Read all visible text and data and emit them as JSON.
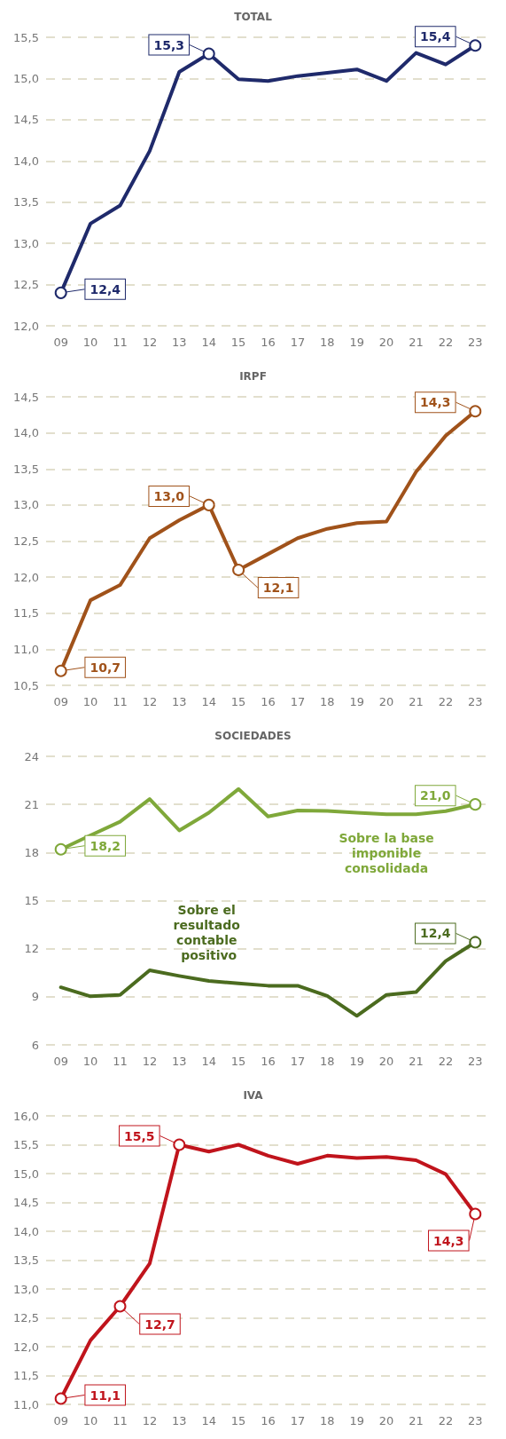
{
  "chart_data": [
    {
      "type": "line",
      "title": "TOTAL",
      "categories": [
        "09",
        "10",
        "11",
        "12",
        "13",
        "14",
        "15",
        "16",
        "17",
        "18",
        "19",
        "20",
        "21",
        "22",
        "23"
      ],
      "series": [
        {
          "color": "#1f2a6b",
          "values": [
            12.4,
            13.24,
            13.46,
            14.12,
            15.08,
            15.3,
            14.99,
            14.97,
            15.03,
            15.07,
            15.11,
            14.97,
            15.31,
            15.17,
            15.4
          ],
          "value_labels": [
            "12,4",
            null,
            null,
            null,
            null,
            "15,3",
            null,
            null,
            null,
            null,
            null,
            null,
            null,
            null,
            "15,4"
          ]
        }
      ],
      "ylim": [
        12,
        15.5
      ],
      "yticks": [
        {
          "value": 12,
          "label": "12,0"
        },
        {
          "value": 12.5,
          "label": "12,5"
        },
        {
          "value": 13,
          "label": "13,0"
        },
        {
          "value": 13.5,
          "label": "13,5"
        },
        {
          "value": 14,
          "label": "14,0"
        },
        {
          "value": 14.5,
          "label": "14,5"
        },
        {
          "value": 15,
          "label": "15,0"
        },
        {
          "value": 15.5,
          "label": "15,5"
        }
      ],
      "grid": "y",
      "legend": false,
      "line_style": "solid"
    },
    {
      "type": "line",
      "title": "IRPF",
      "categories": [
        "09",
        "10",
        "11",
        "12",
        "13",
        "14",
        "15",
        "16",
        "17",
        "18",
        "19",
        "20",
        "21",
        "22",
        "23"
      ],
      "series": [
        {
          "color": "#a0521a",
          "values": [
            10.7,
            11.68,
            11.89,
            12.54,
            12.79,
            13.0,
            12.1,
            12.32,
            12.54,
            12.67,
            12.75,
            12.77,
            13.46,
            13.96,
            14.3
          ],
          "value_labels": [
            "10,7",
            null,
            null,
            null,
            null,
            "13,0",
            "12,1",
            null,
            null,
            null,
            null,
            null,
            null,
            null,
            "14,3"
          ]
        }
      ],
      "ylim": [
        10.5,
        14.5
      ],
      "yticks": [
        {
          "value": 10.5,
          "label": "10,5"
        },
        {
          "value": 11,
          "label": "11,0"
        },
        {
          "value": 11.5,
          "label": "11,5"
        },
        {
          "value": 12,
          "label": "12,0"
        },
        {
          "value": 12.5,
          "label": "12,5"
        },
        {
          "value": 13,
          "label": "13,0"
        },
        {
          "value": 13.5,
          "label": "13,5"
        },
        {
          "value": 14,
          "label": "14,0"
        },
        {
          "value": 14.5,
          "label": "14,5"
        }
      ],
      "grid": "y",
      "legend": false,
      "line_style": "solid"
    },
    {
      "type": "line",
      "title": "SOCIEDADES",
      "categories": [
        "09",
        "10",
        "11",
        "12",
        "13",
        "14",
        "15",
        "16",
        "17",
        "18",
        "19",
        "20",
        "21",
        "22",
        "23"
      ],
      "series": [
        {
          "name": "Sobre la base imponible consolidada",
          "color": "#7fa83a",
          "values": [
            18.2,
            19.07,
            19.92,
            21.33,
            19.38,
            20.48,
            21.96,
            20.25,
            20.62,
            20.6,
            20.48,
            20.39,
            20.39,
            20.58,
            21.0
          ],
          "value_labels": [
            "18,2",
            null,
            null,
            null,
            null,
            null,
            null,
            null,
            null,
            null,
            null,
            null,
            null,
            null,
            "21,0"
          ]
        },
        {
          "name": "Sobre el resultado contable positivo",
          "color": "#4b6b1f",
          "values": [
            9.59,
            9.03,
            9.12,
            10.65,
            10.3,
            9.99,
            9.83,
            9.69,
            9.69,
            9.05,
            7.81,
            9.12,
            9.29,
            11.23,
            12.4
          ],
          "value_labels": [
            null,
            null,
            null,
            null,
            null,
            null,
            null,
            null,
            null,
            null,
            null,
            null,
            null,
            null,
            "12,4"
          ]
        }
      ],
      "ylim": [
        6,
        24
      ],
      "yticks": [
        6,
        9,
        12,
        15,
        18,
        21,
        24
      ],
      "grid": "y",
      "legend": false,
      "line_style": "solid"
    },
    {
      "type": "line",
      "title": "IVA",
      "categories": [
        "09",
        "10",
        "11",
        "12",
        "13",
        "14",
        "15",
        "16",
        "17",
        "18",
        "19",
        "20",
        "21",
        "22",
        "23"
      ],
      "series": [
        {
          "color": "#c0141c",
          "values": [
            11.1,
            12.11,
            12.7,
            13.44,
            15.5,
            15.38,
            15.5,
            15.31,
            15.17,
            15.31,
            15.27,
            15.29,
            15.23,
            14.99,
            14.3
          ],
          "value_labels": [
            "11,1",
            null,
            "12,7",
            null,
            "15,5",
            null,
            null,
            null,
            null,
            null,
            null,
            null,
            null,
            null,
            "14,3"
          ]
        }
      ],
      "ylim": [
        11,
        16
      ],
      "yticks": [
        {
          "value": 11,
          "label": "11,0"
        },
        {
          "value": 11.5,
          "label": "11,5"
        },
        {
          "value": 12,
          "label": "12,0"
        },
        {
          "value": 12.5,
          "label": "12,5"
        },
        {
          "value": 13,
          "label": "13,0"
        },
        {
          "value": 13.5,
          "label": "13,5"
        },
        {
          "value": 14,
          "label": "14,0"
        },
        {
          "value": 14.5,
          "label": "14,5"
        },
        {
          "value": 15,
          "label": "15,0"
        },
        {
          "value": 15.5,
          "label": "15,5"
        },
        {
          "value": 16,
          "label": "16,0"
        }
      ],
      "grid": "y",
      "legend": false,
      "line_style": "solid"
    }
  ]
}
